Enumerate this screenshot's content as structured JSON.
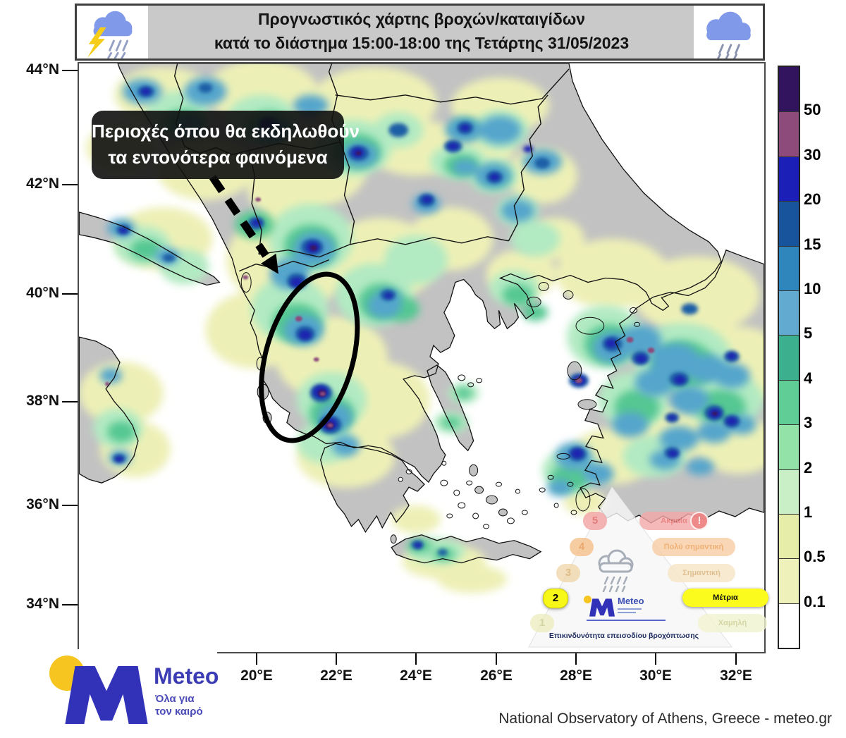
{
  "banner": {
    "title_line1": "Προγνωστικός χάρτης βροχών/καταιγίδων",
    "title_line2": "κατά το διάστημα 15:00-18:00 της Τετάρτης 31/05/2023",
    "left_icon": "storm-cloud-lightning-rain",
    "right_icon": "rain-cloud"
  },
  "legend": {
    "values": [
      "50",
      "30",
      "20",
      "15",
      "10",
      "5",
      "4",
      "3",
      "2",
      "1",
      "0.5",
      "0.1"
    ],
    "colors": [
      "#31135e",
      "#8d4b7c",
      "#1c1eb8",
      "#17549c",
      "#2e86bc",
      "#62aad0",
      "#3cb08e",
      "#60cc96",
      "#93e3a9",
      "#c8efc6",
      "#e6eda9",
      "#eff1bb",
      "#ffffff"
    ]
  },
  "axes": {
    "lat_labels": [
      "44°N",
      "42°N",
      "40°N",
      "38°N",
      "36°N",
      "34°N"
    ],
    "lon_labels": [
      "20°E",
      "22°E",
      "24°E",
      "26°E",
      "28°E",
      "30°E",
      "32°E"
    ]
  },
  "annotation": {
    "line1": "Περιοχές όπου θα εκδηλωθούν",
    "line2": "τα εντονότερα φαινόμενα"
  },
  "pyramid": {
    "caption": "Επικινδυνότητα επεισοδίου βροχόπτωσης",
    "alert_icon": "!",
    "active_level": "2",
    "levels": [
      {
        "num": "5",
        "label": "Ακραία",
        "badge_bg": "#f2a3a3",
        "badge_text": "#e05f5f",
        "pill_bg": "#f5a8a8",
        "pill_text": "#e86a6a",
        "active": false,
        "has_alert": true
      },
      {
        "num": "4",
        "label": "Πολύ σημαντική",
        "badge_bg": "#f5c08a",
        "badge_text": "#e8964f",
        "pill_bg": "#f7cda4",
        "pill_text": "#ec9e55",
        "active": false,
        "has_alert": false
      },
      {
        "num": "3",
        "label": "Σημαντική",
        "badge_bg": "#f1d7ad",
        "badge_text": "#d9ae6d",
        "pill_bg": "#f6e6c6",
        "pill_text": "#d9b176",
        "active": false,
        "has_alert": false
      },
      {
        "num": "2",
        "label": "Μέτρια",
        "badge_bg": "#f8f818",
        "badge_text": "#000000",
        "pill_bg": "#fbfb1e",
        "pill_text": "#111111",
        "active": true,
        "has_alert": false
      },
      {
        "num": "1",
        "label": "Χαμηλή",
        "badge_bg": "#edeec0",
        "badge_text": "#c9cf8e",
        "pill_bg": "#f1f3d0",
        "pill_text": "#c9cf8e",
        "active": false,
        "has_alert": false
      }
    ]
  },
  "logo": {
    "name": "Meteo",
    "tagline_line1": "Όλα για",
    "tagline_line2": "τον καιρό"
  },
  "attribution": "National Observatory of Athens, Greece - meteo.gr"
}
